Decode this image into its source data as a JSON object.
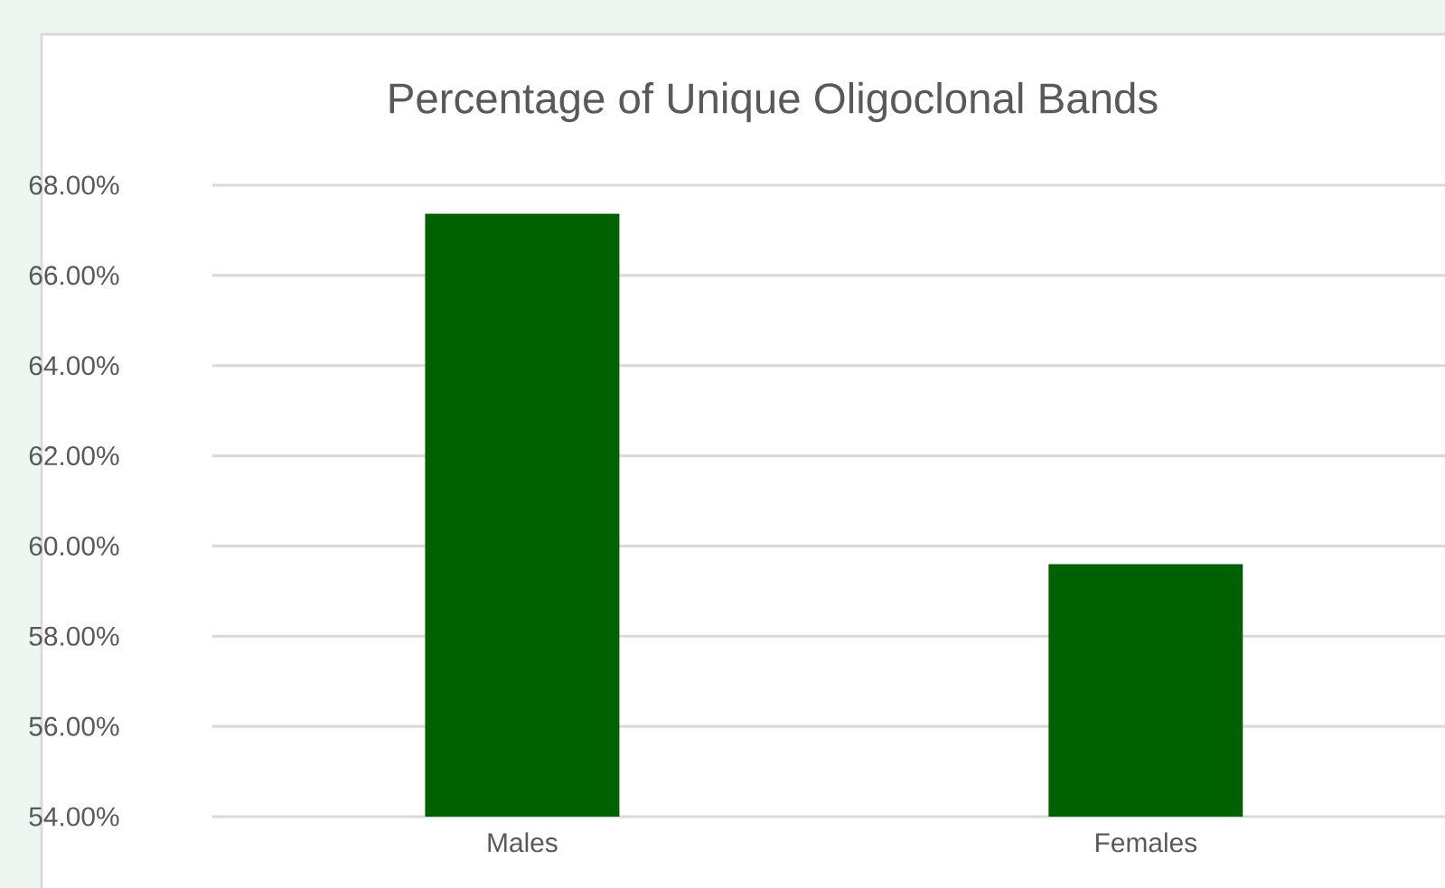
{
  "chart_data": {
    "type": "bar",
    "title": "Percentage of Unique Oligoclonal Bands",
    "categories": [
      "Males",
      "Females"
    ],
    "values": [
      67.37,
      59.6
    ],
    "color": "#006100",
    "ylim": [
      54,
      68
    ],
    "yticks": [
      {
        "value": 54,
        "label": "54.00%"
      },
      {
        "value": 56,
        "label": "56.00%"
      },
      {
        "value": 58,
        "label": "58.00%"
      },
      {
        "value": 60,
        "label": "60.00%"
      },
      {
        "value": 62,
        "label": "62.00%"
      },
      {
        "value": 64,
        "label": "64.00%"
      },
      {
        "value": 66,
        "label": "66.00%"
      },
      {
        "value": 68,
        "label": "68.00%"
      }
    ],
    "grid": "y"
  }
}
